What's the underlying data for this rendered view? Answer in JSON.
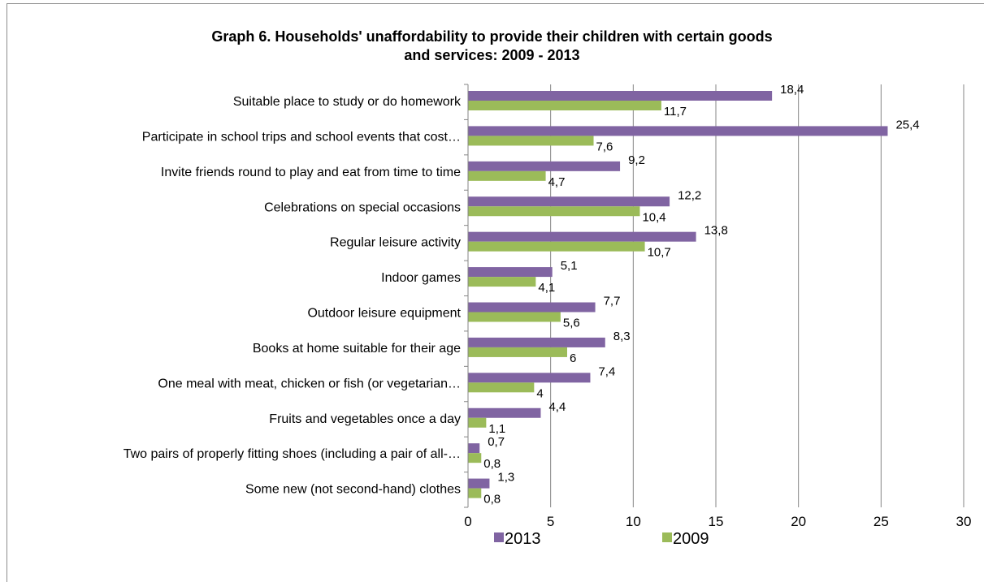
{
  "chart_data": {
    "type": "bar",
    "orientation": "horizontal",
    "title_lines": [
      "Graph 6. Households' unaffordability to provide their children with certain goods",
      "and services: 2009 - 2013"
    ],
    "categories": [
      "Suitable place to study or do homework",
      "Participate in school trips and school events that cost…",
      "Invite friends round to play and eat from time to time",
      "Celebrations on special occasions",
      "Regular leisure activity",
      "Indoor games",
      "Outdoor leisure equipment",
      "Books at home suitable for their age",
      "One meal with meat, chicken or fish (or vegetarian…",
      "Fruits and vegetables once a day",
      "Two pairs of properly fitting shoes (including a pair of all-…",
      "Some new (not second-hand) clothes"
    ],
    "series": [
      {
        "name": "2013",
        "color": "#8064a2",
        "values": [
          18.4,
          25.4,
          9.2,
          12.2,
          13.8,
          5.1,
          7.7,
          8.3,
          7.4,
          4.4,
          0.7,
          1.3
        ],
        "labels": [
          "18,4",
          "25,4",
          "9,2",
          "12,2",
          "13,8",
          "5,1",
          "7,7",
          "8,3",
          "7,4",
          "4,4",
          "0,7",
          "1,3"
        ]
      },
      {
        "name": "2009",
        "color": "#9bbb59",
        "values": [
          11.7,
          7.6,
          4.7,
          10.4,
          10.7,
          4.1,
          5.6,
          6,
          4,
          1.1,
          0.8,
          0.8
        ],
        "labels": [
          "11,7",
          "7,6",
          "4,7",
          "10,4",
          "10,7",
          "4,1",
          "5,6",
          "6",
          "4",
          "1,1",
          "0,8",
          "0,8"
        ]
      }
    ],
    "xlim": [
      0,
      30
    ],
    "xticks": [
      "0",
      "5",
      "10",
      "15",
      "20",
      "25",
      "30"
    ],
    "grid": true,
    "legend_position": "bottom",
    "gridline_color": "#868686"
  }
}
